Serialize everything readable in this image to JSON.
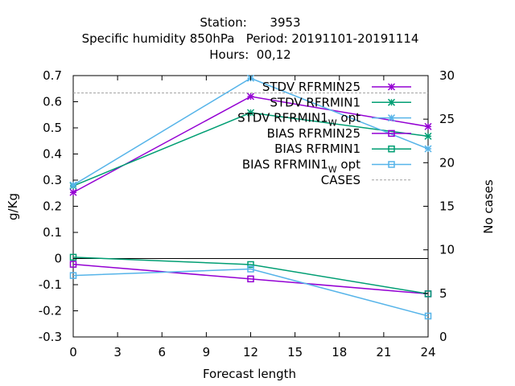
{
  "chart_data": {
    "type": "line",
    "title_lines": [
      "Station:      3953",
      "Specific humidity 850hPa   Period: 20191101-20191114",
      "Hours:  00,12"
    ],
    "xlabel": "Forecast length",
    "ylabel": "g/Kg",
    "y2label": "No cases",
    "xlim": [
      0,
      24
    ],
    "ylim": [
      -0.3,
      0.7
    ],
    "y2lim": [
      0,
      30
    ],
    "xticks": [
      0,
      3,
      6,
      9,
      12,
      15,
      18,
      21,
      24
    ],
    "yticks": [
      -0.3,
      -0.2,
      -0.1,
      0,
      0.1,
      0.2,
      0.3,
      0.4,
      0.5,
      0.6,
      0.7
    ],
    "y2ticks": [
      0,
      5,
      10,
      15,
      20,
      25,
      30
    ],
    "legend_position": "top-right",
    "grid": false,
    "x": [
      0,
      12,
      24
    ],
    "series": [
      {
        "name": "STDV RFRMIN25",
        "label_main": "STDV RFRMIN25",
        "label_sub": "",
        "label_tail": "",
        "marker": "star",
        "color": "#9400d3",
        "values": [
          0.253,
          0.62,
          0.505
        ]
      },
      {
        "name": "STDV RFRMIN1",
        "label_main": "STDV RFRMIN1",
        "label_sub": "",
        "label_tail": "",
        "marker": "star",
        "color": "#009e73",
        "values": [
          0.278,
          0.558,
          0.468
        ]
      },
      {
        "name": "STDV RFRMIN1W opt",
        "label_main": "STDV RFRMIN1",
        "label_sub": "W",
        "label_tail": " opt",
        "marker": "star",
        "color": "#56b4e9",
        "values": [
          0.281,
          0.69,
          0.42
        ]
      },
      {
        "name": "BIAS RFRMIN25",
        "label_main": "BIAS RFRMIN25",
        "label_sub": "",
        "label_tail": "",
        "marker": "square",
        "color": "#9400d3",
        "values": [
          -0.022,
          -0.078,
          -0.135
        ]
      },
      {
        "name": "BIAS RFRMIN1",
        "label_main": "BIAS RFRMIN1",
        "label_sub": "",
        "label_tail": "",
        "marker": "square",
        "color": "#009e73",
        "values": [
          0.005,
          -0.023,
          -0.135
        ]
      },
      {
        "name": "BIAS RFRMIN1W opt",
        "label_main": "BIAS RFRMIN1",
        "label_sub": "W",
        "label_tail": " opt",
        "marker": "square",
        "color": "#56b4e9",
        "values": [
          -0.065,
          -0.04,
          -0.22
        ]
      }
    ],
    "cases": {
      "name": "CASES",
      "label_main": "CASES",
      "color": "#a0a0a0",
      "values": [
        28,
        28,
        28
      ]
    }
  }
}
